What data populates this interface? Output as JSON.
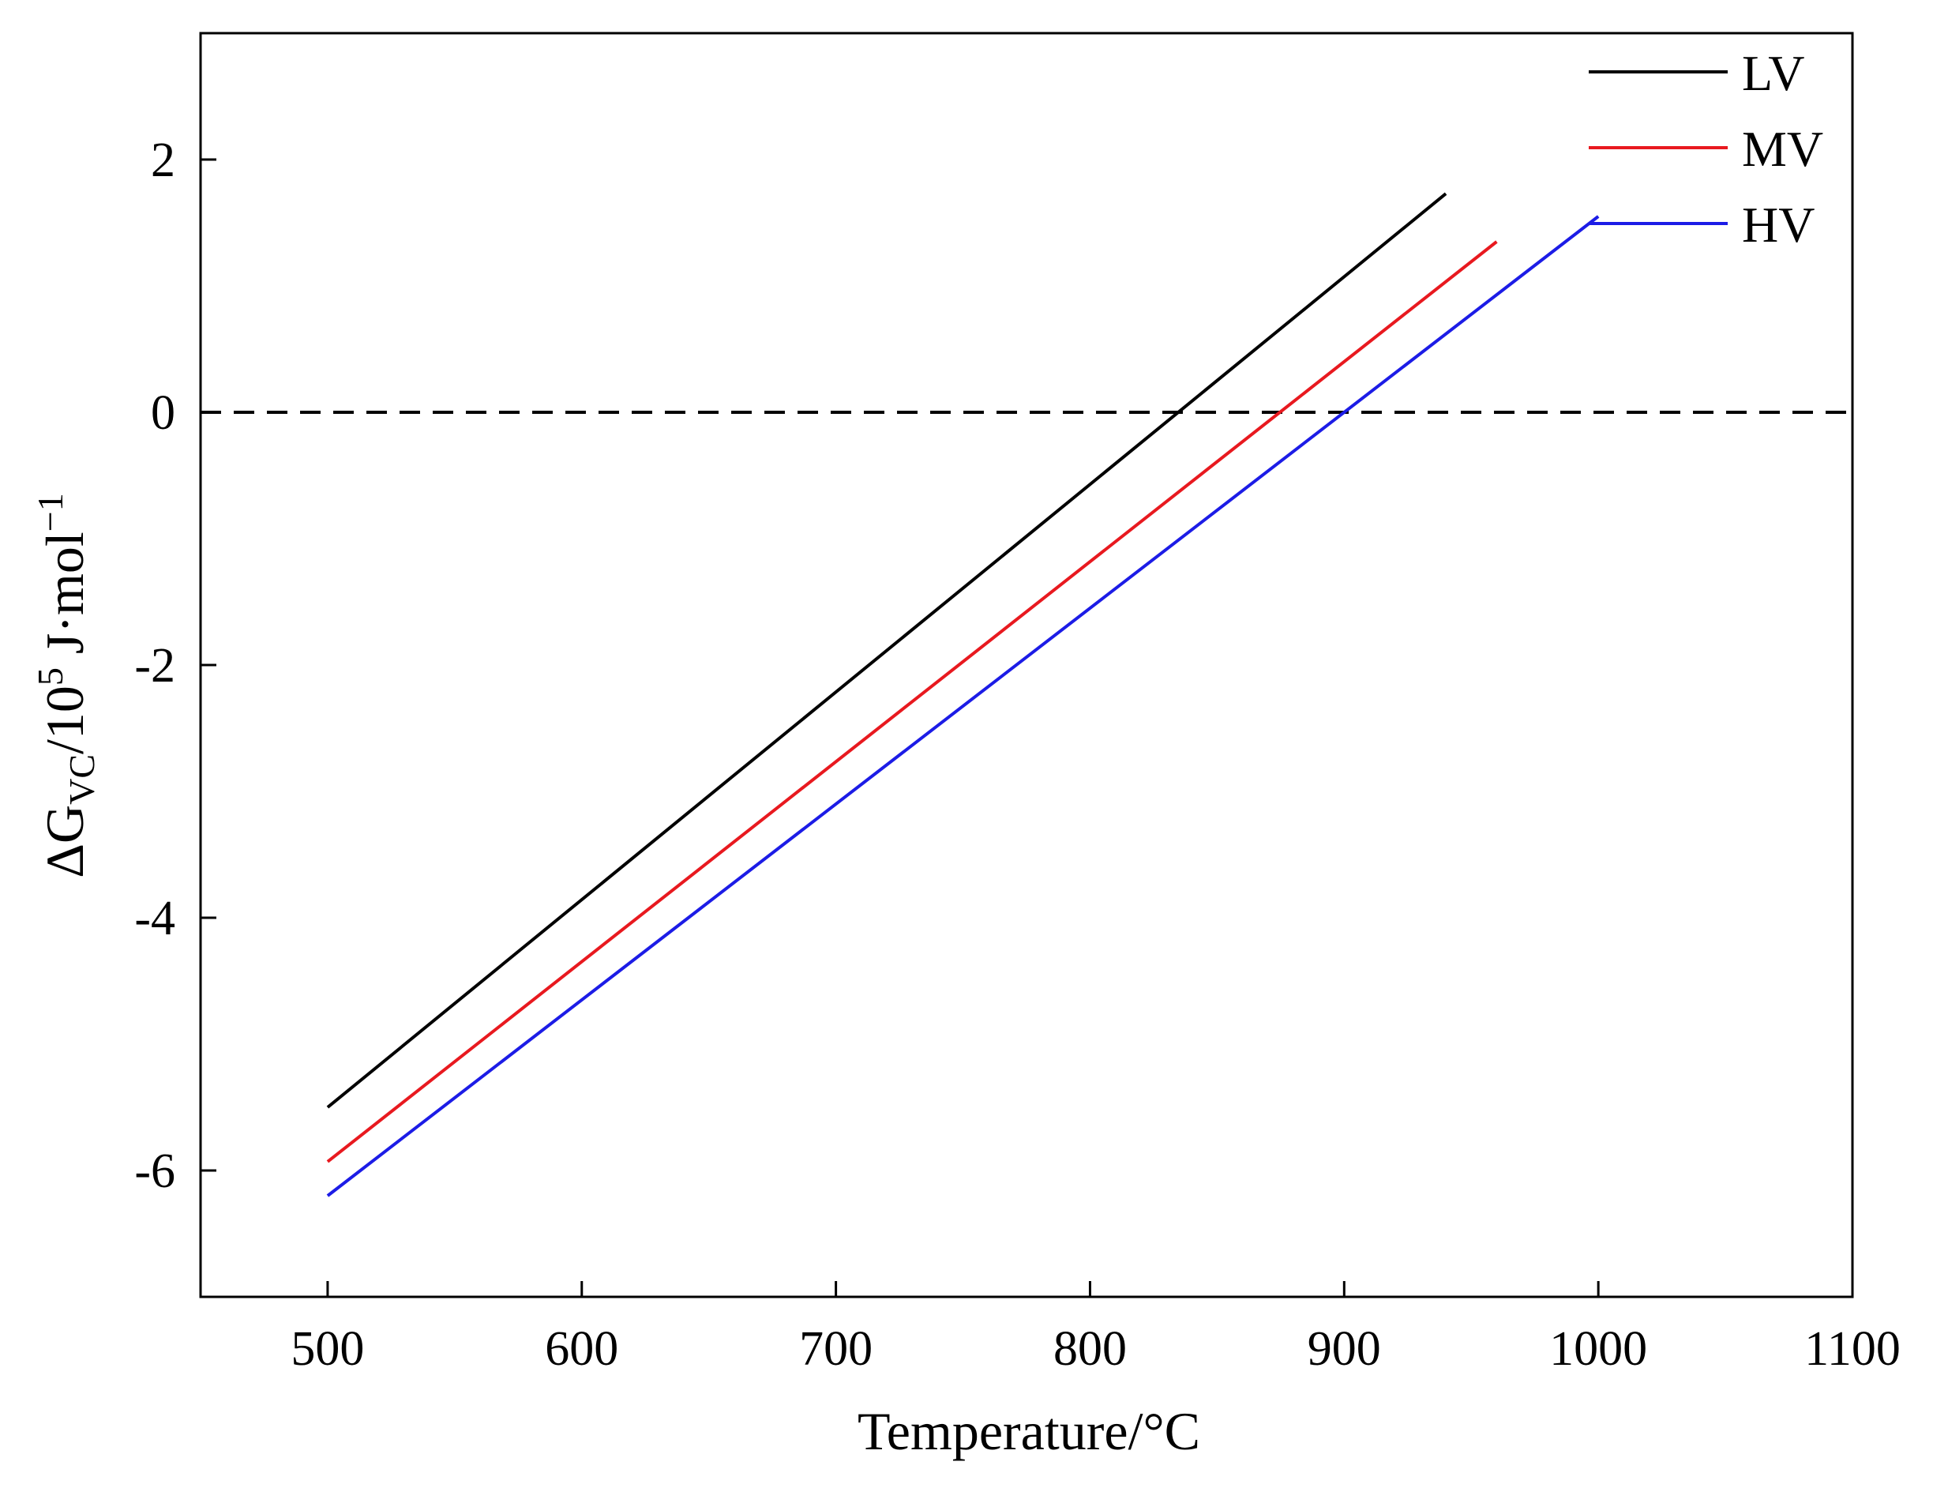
{
  "chart_data": {
    "type": "line",
    "title": "",
    "xlabel": "Temperature/°C",
    "ylabel": {
      "prefix": "ΔG",
      "subscript": "VC",
      "middle": "/10",
      "exponent": "5",
      "unit": " J·mol",
      "unit_exponent": "−1"
    },
    "xlim": [
      450,
      1100
    ],
    "ylim": [
      -7,
      3
    ],
    "xticks": [
      500,
      600,
      700,
      800,
      900,
      1000,
      1100
    ],
    "yticks": [
      2,
      0,
      -2,
      -4,
      -6
    ],
    "ytick_labels": [
      "2",
      "0",
      "-2",
      "-4",
      "-6"
    ],
    "grid": false,
    "legend_position": "top-right",
    "reference_line": {
      "y": 0,
      "style": "dashed",
      "color": "#000000"
    },
    "series": [
      {
        "name": "LV",
        "color": "#000000",
        "x": [
          500,
          940
        ],
        "y": [
          -5.5,
          1.73
        ]
      },
      {
        "name": "MV",
        "color": "#e8191f",
        "x": [
          500,
          960
        ],
        "y": [
          -5.93,
          1.35
        ]
      },
      {
        "name": "HV",
        "color": "#1c1ce6",
        "x": [
          500,
          1000
        ],
        "y": [
          -6.2,
          1.55
        ]
      }
    ]
  }
}
